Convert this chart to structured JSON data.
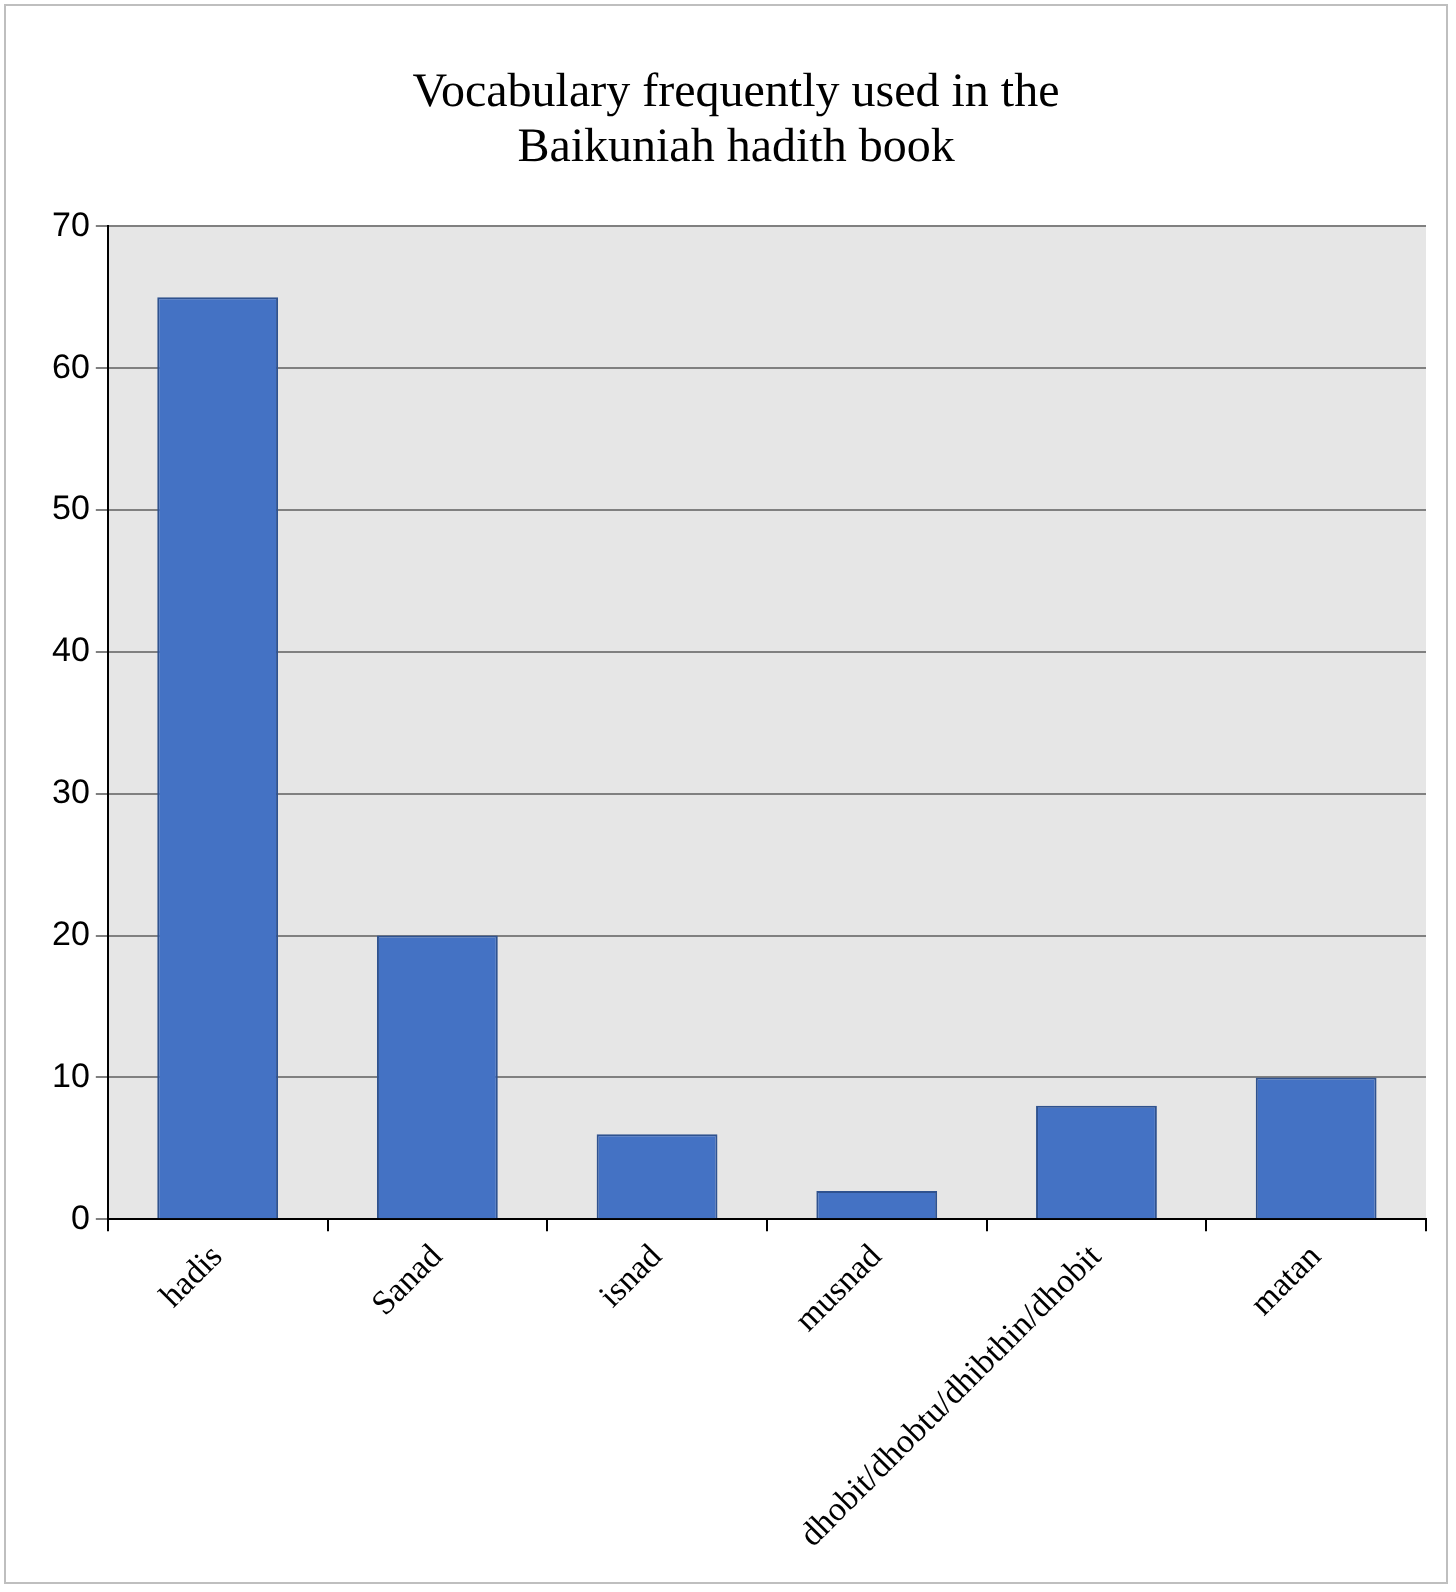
{
  "chart_data": {
    "type": "bar",
    "title": "Vocabulary frequently used in the Baikuniah hadith book",
    "categories": [
      "hadis",
      "Sanad",
      "isnad",
      "musnad",
      "dhobit/dhobtu/dhibthin/dhobit",
      "matan"
    ],
    "values": [
      65,
      20,
      6,
      2,
      8,
      10
    ],
    "color": "#4472c4",
    "ylim": [
      0,
      70
    ],
    "yticks": [
      0,
      10,
      20,
      30,
      40,
      50,
      60,
      70
    ],
    "grid": "y"
  }
}
